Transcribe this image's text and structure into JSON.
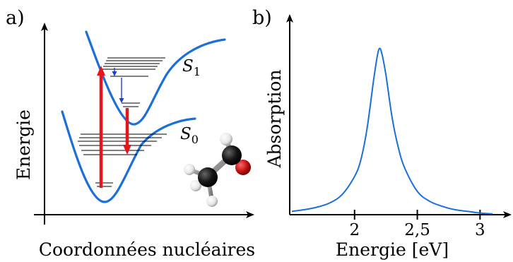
{
  "panel_a": {
    "label": "a)",
    "y_axis_label": "Energie",
    "x_axis_label": "Coordonnées nucléaires",
    "upper_state_label": {
      "letter": "S",
      "subscript": "1"
    },
    "lower_state_label": {
      "letter": "S",
      "subscript": "0"
    }
  },
  "panel_b": {
    "label": "b)",
    "chart_data": {
      "type": "line",
      "ylabel": "Absorption",
      "xlabel": "Energie [eV]",
      "x_ticks": [
        "2",
        "2,5",
        "3"
      ],
      "x_tick_values": [
        2.0,
        2.5,
        3.0
      ],
      "xlim": [
        1.5,
        3.15
      ],
      "ylim": [
        0,
        1.1
      ],
      "peak_x": 2.2,
      "series": [
        {
          "x": [
            1.5,
            1.6,
            1.7,
            1.8,
            1.9,
            2.0,
            2.05,
            2.1,
            2.15,
            2.18,
            2.2,
            2.22,
            2.25,
            2.3,
            2.35,
            2.4,
            2.5,
            2.6,
            2.7,
            2.8,
            2.9,
            3.0,
            3.1
          ],
          "y": [
            0.02,
            0.03,
            0.045,
            0.07,
            0.12,
            0.23,
            0.33,
            0.52,
            0.8,
            0.95,
            1.0,
            0.96,
            0.84,
            0.58,
            0.4,
            0.28,
            0.14,
            0.08,
            0.05,
            0.03,
            0.02,
            0.01,
            0.005
          ]
        }
      ]
    }
  },
  "colors": {
    "curve": "#1a6fdb",
    "transition": "#e8141b",
    "relaxation": "#1a3fd6"
  }
}
